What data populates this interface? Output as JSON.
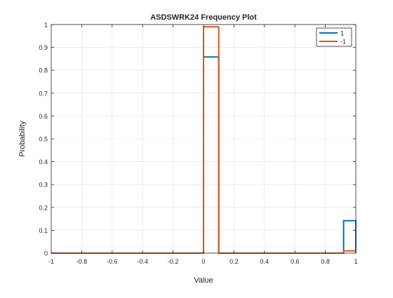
{
  "chart_data": {
    "type": "stairs",
    "title": "ASDSWRK24 Frequency Plot",
    "xlabel": "Value",
    "ylabel": "Probability",
    "xlim": [
      -1,
      1
    ],
    "ylim": [
      0,
      1
    ],
    "xticks": [
      -1,
      -0.8,
      -0.6,
      -0.4,
      -0.2,
      0,
      0.2,
      0.4,
      0.6,
      0.8,
      1
    ],
    "xtick_labels": [
      "-1",
      "-0.8",
      "-0.6",
      "-0.4",
      "-0.2",
      "0",
      "0.2",
      "0.4",
      "0.6",
      "0.8",
      "1"
    ],
    "yticks": [
      0,
      0.1,
      0.2,
      0.3,
      0.4,
      0.5,
      0.6,
      0.7,
      0.8,
      0.9,
      1
    ],
    "ytick_labels": [
      "0",
      "0.1",
      "0.2",
      "0.3",
      "0.4",
      "0.5",
      "0.6",
      "0.7",
      "0.8",
      "0.9",
      "1"
    ],
    "grid": true,
    "legend_position": "top-right",
    "series": [
      {
        "name": "1",
        "color": "#0072BD",
        "x": [
          -1,
          0,
          0,
          0.1,
          0.1,
          0.92,
          0.92,
          1,
          1
        ],
        "y": [
          0,
          0,
          0.858,
          0.858,
          0,
          0,
          0.142,
          0.142,
          0
        ]
      },
      {
        "name": "-1",
        "color": "#D95319",
        "x": [
          -1,
          0,
          0,
          0.1,
          0.1,
          0.92,
          0.92,
          1,
          1
        ],
        "y": [
          0,
          0,
          0.99,
          0.99,
          0,
          0,
          0.01,
          0.01,
          0
        ]
      }
    ]
  }
}
